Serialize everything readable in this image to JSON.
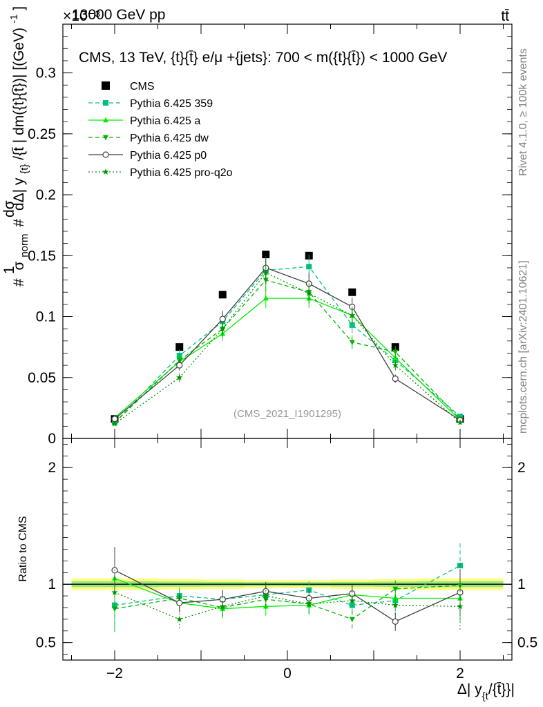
{
  "header": {
    "process": "13000 GeV pp",
    "channel": "tt̄",
    "exponent": "×10⁻³"
  },
  "side_labels": {
    "rivet": "Rivet 4.1.0, ≥ 100k events",
    "mcplots": "mcplots.cern.ch [arXiv:2401.10621]"
  },
  "colors": {
    "cms": "#000000",
    "p359": "#00c080",
    "pa": "#00ee00",
    "pdw": "#00b400",
    "pp0": "#404040",
    "pq2o": "#009600",
    "band_outer": "#ffff80",
    "band_inner": "#80e080"
  },
  "chart_data": [
    {
      "type": "line",
      "panel": "main",
      "title": "CMS, 13 TeV, {t}{t̄} e/μ +{jets}: 700 < m({t}{t̄}) < 1000 GeV",
      "watermark": "(CMS_2021_I1901295)",
      "ylabel": "#1/σ_norm # dσ/dΔ|y_{t/t̄}| dm({t}{t̄})| [(GeV)⁻¹]",
      "ylabel_parts": {
        "num1": "#",
        "sigma": "σ",
        "sub_norm": "norm",
        "one": "1",
        "d_sigma": "dσ",
        "hash2": "#",
        "d_delta": "dΔ| y",
        "sub_t": "{t}",
        "slash": "/{t̄",
        "tail": "| dm({t}{t̄})| [(GeV)",
        "sup_m1": "-1",
        "close": "]"
      },
      "xlim": [
        -2.6,
        2.6
      ],
      "ylim": [
        0,
        0.34
      ],
      "yticks": [
        {
          "v": 0.0,
          "label": "0"
        },
        {
          "v": 0.05,
          "label": "0.05"
        },
        {
          "v": 0.1,
          "label": "0.1"
        },
        {
          "v": 0.15,
          "label": "0.15"
        },
        {
          "v": 0.2,
          "label": "0.2"
        },
        {
          "v": 0.25,
          "label": "0.25"
        },
        {
          "v": 0.3,
          "label": "0.3"
        }
      ],
      "x": [
        -2.0,
        -1.25,
        -0.75,
        -0.25,
        0.25,
        0.75,
        1.25,
        2.0
      ],
      "series": [
        {
          "name": "CMS",
          "key": "cms",
          "marker": "square",
          "dash": "",
          "data": true,
          "values": [
            0.016,
            0.075,
            0.118,
            0.151,
            0.15,
            0.12,
            0.075,
            0.016
          ]
        },
        {
          "name": "Pythia 6.425 359",
          "key": "p359",
          "marker": "square",
          "dash": "6,4",
          "values": [
            0.013,
            0.068,
            0.096,
            0.138,
            0.141,
            0.093,
            0.064,
            0.018
          ]
        },
        {
          "name": "Pythia 6.425 a",
          "key": "pa",
          "marker": "triangle",
          "dash": "",
          "values": [
            0.017,
            0.063,
            0.086,
            0.115,
            0.115,
            0.101,
            0.066,
            0.015
          ]
        },
        {
          "name": "Pythia 6.425 dw",
          "key": "pdw",
          "marker": "tridown",
          "dash": "6,4",
          "values": [
            0.013,
            0.064,
            0.09,
            0.13,
            0.12,
            0.079,
            0.071,
            0.016
          ]
        },
        {
          "name": "Pythia 6.425 p0",
          "key": "pp0",
          "marker": "circle",
          "dash": "",
          "values": [
            0.016,
            0.06,
            0.098,
            0.14,
            0.127,
            0.108,
            0.049,
            0.015
          ]
        },
        {
          "name": "Pythia 6.425 pro-q2o",
          "key": "pq2o",
          "marker": "star",
          "dash": "2,3",
          "values": [
            0.012,
            0.05,
            0.09,
            0.136,
            0.119,
            0.101,
            0.06,
            0.013
          ]
        }
      ]
    },
    {
      "type": "line",
      "panel": "ratio",
      "ylabel": "Ratio to CMS",
      "xlabel": "Δ| y_{t}/{t̄}|",
      "xlabel_parts": {
        "main": "Δ| y",
        "sub": "{t",
        "tail": "/{t̄}}|"
      },
      "xlim": [
        -2.6,
        2.6
      ],
      "ylim": [
        0.35,
        2.25
      ],
      "xticks": [
        {
          "v": -2,
          "label": "−2"
        },
        {
          "v": 0,
          "label": "0"
        },
        {
          "v": 2,
          "label": "2"
        }
      ],
      "yticks": [
        {
          "v": 0.5,
          "label": "0.5"
        },
        {
          "v": 1.0,
          "label": "1"
        },
        {
          "v": 2.0,
          "label": "2"
        }
      ],
      "x": [
        -2.0,
        -1.25,
        -0.75,
        -0.25,
        0.25,
        0.75,
        1.25,
        2.0
      ],
      "band_edges": [
        -2.5,
        -1.5,
        -1.0,
        -0.5,
        0.0,
        0.5,
        1.0,
        1.5,
        2.5
      ],
      "band_outer_half": [
        0.05,
        0.045,
        0.04,
        0.035,
        0.035,
        0.04,
        0.045,
        0.05
      ],
      "band_inner_half": [
        0.025,
        0.022,
        0.02,
        0.018,
        0.018,
        0.02,
        0.022,
        0.025
      ],
      "series": [
        {
          "name": "Pythia 6.425 359",
          "key": "p359",
          "marker": "square",
          "dash": "6,4",
          "values": [
            0.82,
            0.9,
            0.87,
            0.91,
            0.95,
            0.82,
            0.86,
            1.16
          ]
        },
        {
          "name": "Pythia 6.425 a",
          "key": "pa",
          "marker": "triangle",
          "dash": "",
          "values": [
            1.05,
            0.84,
            0.79,
            0.81,
            0.82,
            0.91,
            0.88,
            0.88
          ]
        },
        {
          "name": "Pythia 6.425 dw",
          "key": "pdw",
          "marker": "tridown",
          "dash": "6,4",
          "values": [
            0.79,
            0.88,
            0.8,
            0.87,
            0.83,
            0.7,
            0.96,
            0.99
          ]
        },
        {
          "name": "Pythia 6.425 p0",
          "key": "pp0",
          "marker": "circle",
          "dash": "",
          "values": [
            1.12,
            0.84,
            0.87,
            0.94,
            0.88,
            0.92,
            0.68,
            0.93
          ]
        },
        {
          "name": "Pythia 6.425 pro-q2o",
          "key": "pq2o",
          "marker": "star",
          "dash": "2,3",
          "values": [
            0.93,
            0.7,
            0.81,
            0.9,
            0.83,
            0.86,
            0.82,
            0.81
          ]
        }
      ]
    }
  ]
}
